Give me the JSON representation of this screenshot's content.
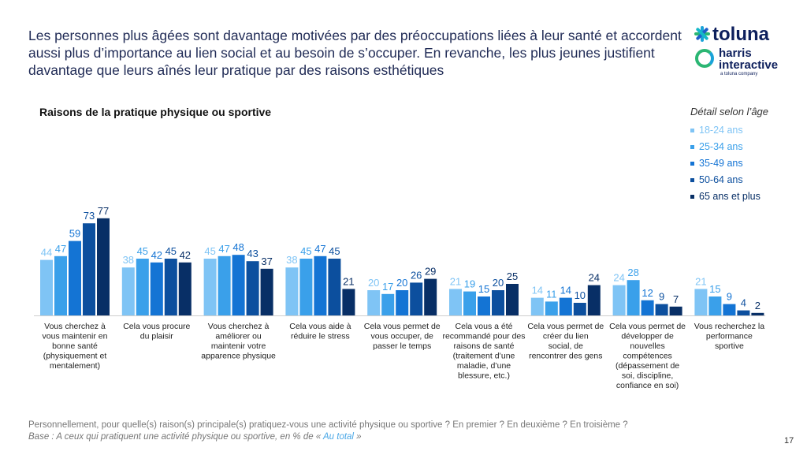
{
  "headline": "Les personnes plus âgées sont davantage motivées par des préoccupations liées à leur santé et accordent aussi plus d’importance au lien social et au besoin de s’occuper. En revanche, les plus jeunes justifient davantage que leurs aînés leur pratique par des raisons esthétiques",
  "logo": {
    "brand": "toluna",
    "line1": "harris",
    "line2": "interactive",
    "tagline": "a toluna company"
  },
  "footer": {
    "question": "Personnellement, pour quelle(s) raison(s) principale(s) pratiquez-vous une activité physique ou sportive ? En premier ? En deuxième ? En troisième ?",
    "base_prefix": "Base : A ceux qui pratiquent une activité physique ou sportive, en % de « ",
    "base_highlight": "Au total",
    "base_suffix": " »",
    "page_number": "17"
  },
  "chart_data": {
    "type": "bar",
    "title": "Raisons de la pratique physique ou sportive",
    "legend_title": "Détail selon l’âge",
    "legend_position": "top-right",
    "grid": false,
    "ylim": [
      0,
      80
    ],
    "categories": [
      "Vous cherchez à vous maintenir en bonne santé (physiquement et mentalement)",
      "Cela vous procure du plaisir",
      "Vous cherchez à améliorer ou maintenir votre apparence physique",
      "Cela vous aide à réduire le stress",
      "Cela vous permet de vous occuper, de passer le temps",
      "Cela vous a été recommandé pour des raisons de santé (traitement d’une maladie, d’une blessure, etc.)",
      "Cela vous permet de créer du lien social, de rencontrer des gens",
      "Cela vous permet de développer de nouvelles compétences (dépassement de soi, discipline, confiance en soi)",
      "Vous recherchez la performance sportive"
    ],
    "series": [
      {
        "name": "18-24 ans",
        "color": "#7fc4f5",
        "values": [
          44,
          38,
          45,
          38,
          20,
          21,
          14,
          24,
          21
        ]
      },
      {
        "name": "25-34 ans",
        "color": "#3aa0ea",
        "values": [
          47,
          45,
          47,
          45,
          17,
          19,
          11,
          28,
          15
        ]
      },
      {
        "name": "35-49 ans",
        "color": "#1474d4",
        "values": [
          59,
          42,
          48,
          47,
          20,
          15,
          14,
          12,
          9
        ]
      },
      {
        "name": "50-64 ans",
        "color": "#0c4f9e",
        "values": [
          73,
          45,
          43,
          45,
          26,
          20,
          10,
          9,
          4
        ]
      },
      {
        "name": "65 ans et plus",
        "color": "#082f66",
        "values": [
          77,
          42,
          37,
          21,
          29,
          25,
          24,
          7,
          2
        ]
      }
    ]
  }
}
